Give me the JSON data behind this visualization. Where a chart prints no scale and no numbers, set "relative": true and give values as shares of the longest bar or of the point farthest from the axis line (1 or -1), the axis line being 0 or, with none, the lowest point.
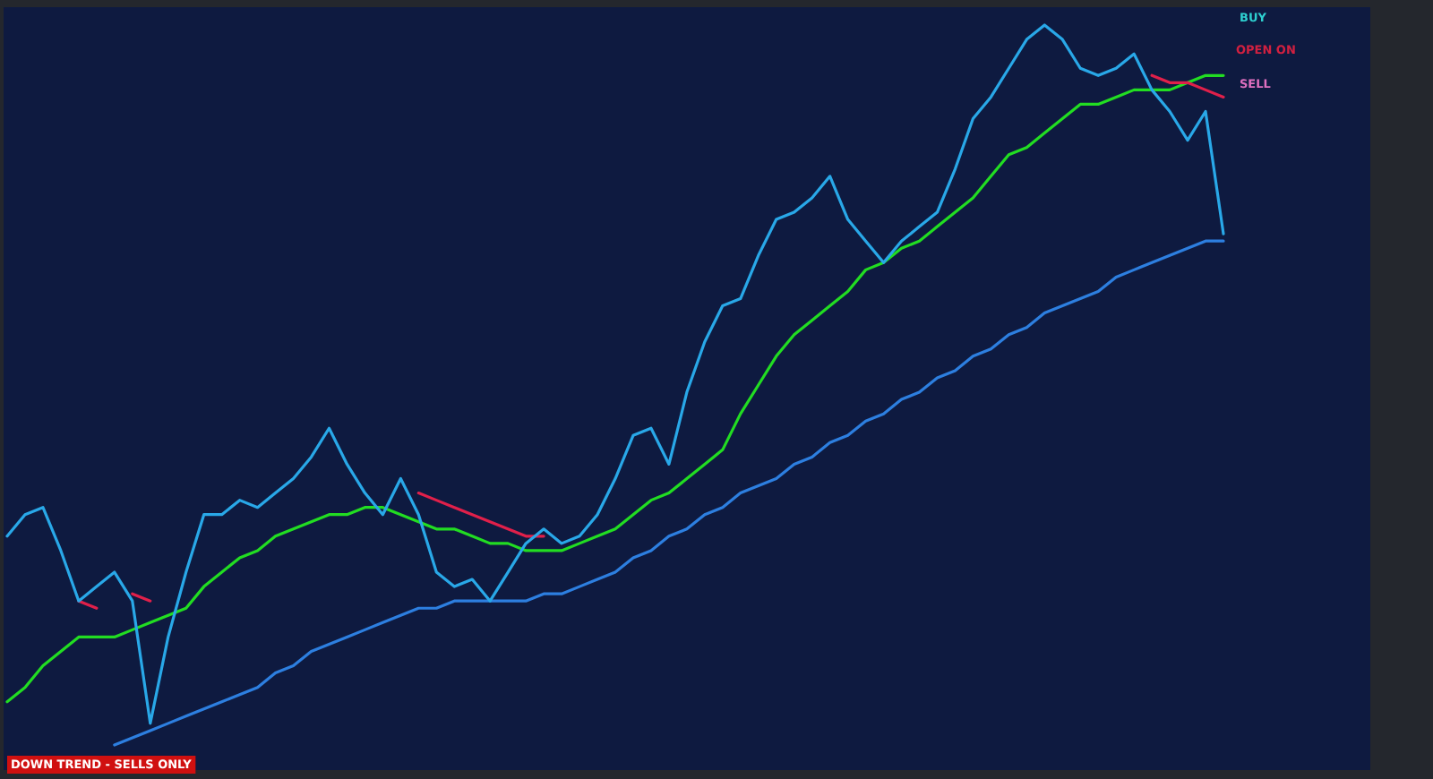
{
  "chart_data": {
    "type": "line",
    "relative": true,
    "categories": [
      null,
      null,
      null,
      null,
      null,
      null,
      null,
      null,
      null,
      null,
      null,
      null,
      null,
      null,
      null,
      null,
      null,
      null,
      null,
      null,
      null,
      null,
      null,
      null,
      null,
      null,
      null,
      null,
      null,
      null,
      null,
      null,
      null,
      null,
      null,
      null,
      null,
      null,
      null,
      null,
      null,
      null,
      null,
      null,
      null,
      null,
      null,
      null,
      null,
      null,
      null,
      null,
      null,
      null,
      null,
      null,
      null,
      null,
      null,
      null,
      null,
      null,
      null,
      null,
      null,
      null,
      null,
      null,
      null
    ],
    "series": [
      {
        "color": "#2d7fe0",
        "values": [
          null,
          null,
          null,
          null,
          null,
          null,
          0,
          0.01,
          0.02,
          0.03,
          0.04,
          0.05,
          0.06,
          0.07,
          0.08,
          0.1,
          0.11,
          0.13,
          0.14,
          0.15,
          0.16,
          0.17,
          0.18,
          0.19,
          0.19,
          0.2,
          0.2,
          0.2,
          0.2,
          0.2,
          0.21,
          0.21,
          0.22,
          0.23,
          0.24,
          0.26,
          0.27,
          0.29,
          0.3,
          0.32,
          0.33,
          0.35,
          0.36,
          0.37,
          0.39,
          0.4,
          0.42,
          0.43,
          0.45,
          0.46,
          0.48,
          0.49,
          0.51,
          0.52,
          0.54,
          0.55,
          0.57,
          0.58,
          0.6,
          0.61,
          0.62,
          0.63,
          0.65,
          0.66,
          0.67,
          0.68,
          0.69,
          0.7,
          0.7
        ]
      },
      {
        "color": "#22dd22",
        "values": [
          0.06,
          0.08,
          0.11,
          0.13,
          0.15,
          0.15,
          0.15,
          0.16,
          0.17,
          0.18,
          0.19,
          0.22,
          0.24,
          0.26,
          0.27,
          0.29,
          0.3,
          0.31,
          0.32,
          0.32,
          0.33,
          0.33,
          0.32,
          0.31,
          0.3,
          0.3,
          0.29,
          0.28,
          0.28,
          0.27,
          0.27,
          0.27,
          0.28,
          0.29,
          0.3,
          0.32,
          0.34,
          0.35,
          0.37,
          0.39,
          0.41,
          0.46,
          0.5,
          0.54,
          0.57,
          0.59,
          0.61,
          0.63,
          0.66,
          0.67,
          0.69,
          0.7,
          0.72,
          0.74,
          0.76,
          0.79,
          0.82,
          0.83,
          0.85,
          0.87,
          0.89,
          0.89,
          0.9,
          0.91,
          0.91,
          0.91,
          0.92,
          0.93,
          0.93
        ]
      },
      {
        "color": "#e0204a",
        "values": [
          null,
          null,
          null,
          null,
          0.2,
          0.19,
          null,
          0.21,
          0.2,
          null,
          null,
          null,
          null,
          null,
          null,
          null,
          null,
          null,
          null,
          null,
          null,
          null,
          null,
          0.35,
          0.34,
          0.33,
          0.32,
          0.31,
          0.3,
          0.29,
          0.29,
          null,
          null,
          null,
          null,
          null,
          null,
          null,
          null,
          null,
          null,
          null,
          null,
          null,
          null,
          null,
          null,
          null,
          null,
          null,
          null,
          null,
          null,
          null,
          null,
          null,
          null,
          null,
          null,
          null,
          null,
          null,
          null,
          null,
          0.93,
          0.92,
          0.92,
          0.91,
          0.9
        ]
      },
      {
        "color": "#29a8e8",
        "values": [
          0.29,
          0.32,
          0.33,
          0.27,
          0.2,
          0.22,
          0.24,
          0.2,
          0.03,
          0.15,
          0.24,
          0.32,
          0.32,
          0.34,
          0.33,
          0.35,
          0.37,
          0.4,
          0.44,
          0.39,
          0.35,
          0.32,
          0.37,
          0.32,
          0.24,
          0.22,
          0.23,
          0.2,
          0.24,
          0.28,
          0.3,
          0.28,
          0.29,
          0.32,
          0.37,
          0.43,
          0.44,
          0.39,
          0.49,
          0.56,
          0.61,
          0.62,
          0.68,
          0.73,
          0.74,
          0.76,
          0.79,
          0.73,
          0.7,
          0.67,
          0.7,
          0.72,
          0.74,
          0.8,
          0.87,
          0.9,
          0.94,
          0.98,
          1,
          0.98,
          0.94,
          0.93,
          0.94,
          0.96,
          0.91,
          0.88,
          0.84,
          0.88,
          0.71
        ]
      }
    ],
    "annotations": [
      "DOWN TREND - SELLS ONLY",
      "BUY",
      "OPEN ON",
      "SELL"
    ]
  }
}
